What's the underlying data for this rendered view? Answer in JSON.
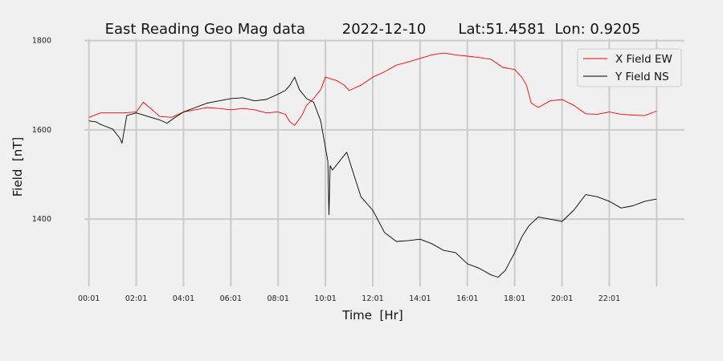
{
  "chart_data": {
    "type": "line",
    "title": "East Reading Geo Mag data        2022-12-10       Lat:51.4581  Lon: 0.9205",
    "xlabel": "Time  [Hr]",
    "ylabel": "Field  [nT]",
    "xlim": [
      -0.6,
      24.6
    ],
    "ylim": [
      1235,
      1810
    ],
    "x_ticks": [
      0,
      2,
      4,
      6,
      8,
      10,
      12,
      14,
      16,
      18,
      20,
      22
    ],
    "x_tick_labels": [
      "00:01",
      "02:01",
      "04:01",
      "06:01",
      "08:01",
      "10:01",
      "12:01",
      "14:01",
      "16:01",
      "18:01",
      "20:01",
      "22:01"
    ],
    "x_grid_lines": [
      0,
      2,
      4,
      6,
      8,
      10,
      12,
      14,
      16,
      18,
      20,
      22,
      24
    ],
    "y_ticks": [
      1400,
      1600,
      1800
    ],
    "y_tick_labels": [
      "1400",
      "1600",
      "1800"
    ],
    "grid": true,
    "legend_position": "top-right",
    "series": [
      {
        "name": "X Field EW",
        "color": "#ff0000",
        "x": [
          0,
          0.5,
          1,
          1.5,
          2,
          2.3,
          3,
          3.5,
          4,
          4.5,
          5,
          5.5,
          6,
          6.5,
          7,
          7.5,
          8,
          8.3,
          8.5,
          8.7,
          9,
          9.2,
          9.5,
          9.8,
          10,
          10.5,
          10.8,
          11,
          11.5,
          12,
          12.5,
          13,
          13.5,
          14,
          14.5,
          15,
          15.5,
          16,
          16.5,
          17,
          17.5,
          18,
          18.3,
          18.5,
          18.7,
          19,
          19.5,
          20,
          20.5,
          21,
          21.5,
          22,
          22.5,
          23,
          23.5,
          24
        ],
        "y": [
          1628,
          1638,
          1638,
          1638,
          1640,
          1662,
          1630,
          1628,
          1640,
          1645,
          1650,
          1648,
          1645,
          1648,
          1645,
          1638,
          1640,
          1635,
          1618,
          1610,
          1632,
          1655,
          1670,
          1690,
          1718,
          1710,
          1700,
          1688,
          1700,
          1718,
          1730,
          1745,
          1752,
          1760,
          1768,
          1772,
          1768,
          1765,
          1762,
          1758,
          1740,
          1735,
          1718,
          1700,
          1660,
          1650,
          1665,
          1668,
          1655,
          1636,
          1635,
          1640,
          1635,
          1633,
          1632,
          1642
        ]
      },
      {
        "name": "Y Field NS",
        "color": "#000000",
        "x": [
          0,
          0.3,
          0.5,
          1,
          1.3,
          1.4,
          1.6,
          2,
          2.5,
          3,
          3.3,
          3.7,
          4,
          4.5,
          5,
          5.5,
          6,
          6.5,
          7,
          7.5,
          8,
          8.3,
          8.5,
          8.7,
          8.9,
          9.2,
          9.5,
          9.8,
          10,
          10.1,
          10.15,
          10.2,
          10.3,
          10.6,
          10.9,
          11.2,
          11.5,
          12,
          12.5,
          13,
          13.5,
          14,
          14.5,
          15,
          15.5,
          16,
          16.5,
          17,
          17.3,
          17.6,
          18,
          18.3,
          18.6,
          19,
          19.5,
          20,
          20.5,
          21,
          21.5,
          22,
          22.5,
          23,
          23.5,
          24
        ],
        "y": [
          1620,
          1618,
          1612,
          1602,
          1582,
          1570,
          1632,
          1638,
          1630,
          1622,
          1615,
          1630,
          1640,
          1650,
          1660,
          1665,
          1670,
          1672,
          1665,
          1668,
          1680,
          1688,
          1700,
          1718,
          1690,
          1670,
          1662,
          1620,
          1560,
          1530,
          1410,
          1520,
          1510,
          1530,
          1550,
          1500,
          1450,
          1420,
          1370,
          1350,
          1352,
          1355,
          1345,
          1330,
          1325,
          1300,
          1290,
          1275,
          1270,
          1285,
          1325,
          1360,
          1385,
          1405,
          1400,
          1395,
          1420,
          1455,
          1450,
          1440,
          1425,
          1430,
          1440,
          1445
        ]
      }
    ]
  }
}
